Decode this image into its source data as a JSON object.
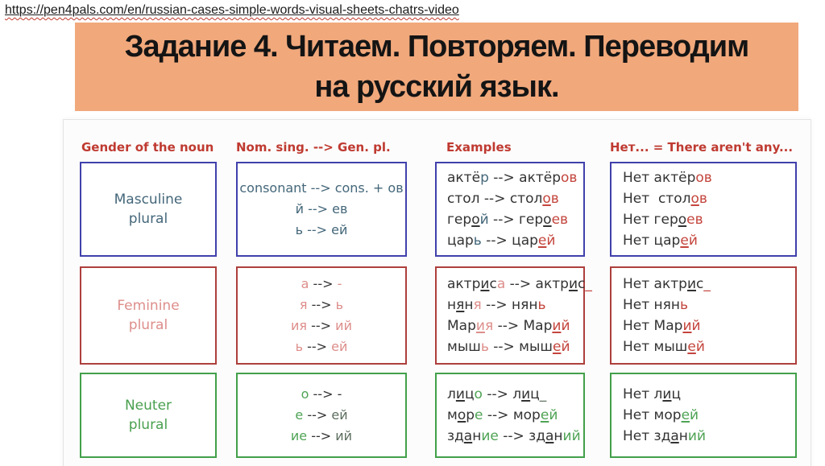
{
  "url": "https://pen4pals.com/en/russian-cases-simple-words-visual-sheets-chatrs-video",
  "banner": {
    "title_line1": "Задание 4. Читаем. Повторяем. Переводим",
    "title_line2": "на русский язык.",
    "bg_color": "#f1a87b"
  },
  "colors": {
    "black": "#333333",
    "teal": "#44677a",
    "red": "#c4453d",
    "pink": "#dd8e8b",
    "green": "#4fa355",
    "dgreen": "#5c6e5e",
    "header_red": "#bf3a31",
    "border_blue": "#4040ac",
    "border_red": "#ad3f3c",
    "border_green": "#42a04a"
  },
  "table": {
    "headers": [
      "Gender of the noun",
      "Nom. sing. --> Gen. pl.",
      "Examples",
      "Нет... = There aren't any..."
    ],
    "rows": [
      {
        "name": "masculine",
        "label_lines": [
          "Masculine",
          "plural"
        ],
        "rules": [
          [
            {
              "t": "consonant --> cons. + ов",
              "c": "teal"
            }
          ],
          [
            {
              "t": "й --> ев",
              "c": "teal"
            }
          ],
          [
            {
              "t": "ь --> ей",
              "c": "teal"
            }
          ]
        ],
        "examples": [
          [
            {
              "t": "актё",
              "c": "black"
            },
            {
              "t": "р",
              "c": "teal"
            },
            {
              "t": " --> актёр",
              "c": "black"
            },
            {
              "t": "ов",
              "c": "red"
            }
          ],
          [
            {
              "t": "стол --> стол",
              "c": "black"
            },
            {
              "t": "о",
              "c": "red",
              "u": true
            },
            {
              "t": "в",
              "c": "red"
            }
          ],
          [
            {
              "t": "гер",
              "c": "black"
            },
            {
              "t": "о",
              "c": "black",
              "u": true
            },
            {
              "t": "й",
              "c": "teal"
            },
            {
              "t": " --> гер",
              "c": "black"
            },
            {
              "t": "о",
              "c": "black",
              "u": true
            },
            {
              "t": "ев",
              "c": "red"
            }
          ],
          [
            {
              "t": "цар",
              "c": "black"
            },
            {
              "t": "ь",
              "c": "teal"
            },
            {
              "t": " --> цар",
              "c": "black"
            },
            {
              "t": "е",
              "c": "red",
              "u": true
            },
            {
              "t": "й",
              "c": "red"
            }
          ]
        ],
        "net": [
          [
            {
              "t": "Нет актёр",
              "c": "black"
            },
            {
              "t": "ов",
              "c": "red"
            }
          ],
          [
            {
              "t": "Нет  стол",
              "c": "black"
            },
            {
              "t": "о",
              "c": "red",
              "u": true
            },
            {
              "t": "в",
              "c": "red"
            }
          ],
          [
            {
              "t": "Нет гер",
              "c": "black"
            },
            {
              "t": "о",
              "c": "black",
              "u": true
            },
            {
              "t": "ев",
              "c": "red"
            }
          ],
          [
            {
              "t": "Нет цар",
              "c": "black"
            },
            {
              "t": "е",
              "c": "red",
              "u": true
            },
            {
              "t": "й",
              "c": "red"
            }
          ]
        ]
      },
      {
        "name": "feminine",
        "label_lines": [
          "Feminine",
          "plural"
        ],
        "rules": [
          [
            {
              "t": "а",
              "c": "pink"
            },
            {
              "t": " --> ",
              "c": "black"
            },
            {
              "t": "-",
              "c": "pink"
            }
          ],
          [
            {
              "t": "я",
              "c": "pink"
            },
            {
              "t": " --> ",
              "c": "black"
            },
            {
              "t": "ь",
              "c": "pink"
            }
          ],
          [
            {
              "t": "ия",
              "c": "pink"
            },
            {
              "t": " --> ",
              "c": "black"
            },
            {
              "t": "ий",
              "c": "pink"
            }
          ],
          [
            {
              "t": "ь",
              "c": "pink"
            },
            {
              "t": " --> ",
              "c": "black"
            },
            {
              "t": "ей",
              "c": "pink"
            }
          ]
        ],
        "examples": [
          [
            {
              "t": "актр",
              "c": "black"
            },
            {
              "t": "и",
              "c": "black",
              "u": true
            },
            {
              "t": "с",
              "c": "black"
            },
            {
              "t": "а",
              "c": "pink"
            },
            {
              "t": " --> актр",
              "c": "black"
            },
            {
              "t": "и",
              "c": "black",
              "u": true
            },
            {
              "t": "с",
              "c": "black"
            },
            {
              "t": "_",
              "c": "red"
            }
          ],
          [
            {
              "t": "н",
              "c": "black"
            },
            {
              "t": "я",
              "c": "black",
              "u": true
            },
            {
              "t": "н",
              "c": "black"
            },
            {
              "t": "я",
              "c": "pink"
            },
            {
              "t": " --> нян",
              "c": "black"
            },
            {
              "t": "ь",
              "c": "red"
            }
          ],
          [
            {
              "t": "Мар",
              "c": "black"
            },
            {
              "t": "и",
              "c": "pink",
              "u": true
            },
            {
              "t": "я",
              "c": "pink"
            },
            {
              "t": " --> Мар",
              "c": "black"
            },
            {
              "t": "и",
              "c": "red",
              "u": true
            },
            {
              "t": "й",
              "c": "red"
            }
          ],
          [
            {
              "t": "мыш",
              "c": "black"
            },
            {
              "t": "ь",
              "c": "pink"
            },
            {
              "t": " --> мыш",
              "c": "black"
            },
            {
              "t": "е",
              "c": "red",
              "u": true
            },
            {
              "t": "й",
              "c": "red"
            }
          ]
        ],
        "net": [
          [
            {
              "t": "Нет актр",
              "c": "black"
            },
            {
              "t": "и",
              "c": "black",
              "u": true
            },
            {
              "t": "с",
              "c": "black"
            },
            {
              "t": "_",
              "c": "red"
            }
          ],
          [
            {
              "t": "Нет нян",
              "c": "black"
            },
            {
              "t": "ь",
              "c": "red"
            }
          ],
          [
            {
              "t": "Нет Мар",
              "c": "black"
            },
            {
              "t": "и",
              "c": "red",
              "u": true
            },
            {
              "t": "й",
              "c": "red"
            }
          ],
          [
            {
              "t": "Нет мыш",
              "c": "black"
            },
            {
              "t": "е",
              "c": "red",
              "u": true
            },
            {
              "t": "й",
              "c": "red"
            }
          ]
        ]
      },
      {
        "name": "neuter",
        "label_lines": [
          "Neuter",
          "plural"
        ],
        "rules": [
          [
            {
              "t": "о",
              "c": "green"
            },
            {
              "t": " --> ",
              "c": "black"
            },
            {
              "t": "-",
              "c": "black"
            }
          ],
          [
            {
              "t": "е",
              "c": "green"
            },
            {
              "t": " --> ",
              "c": "black"
            },
            {
              "t": "ей",
              "c": "dgreen"
            }
          ],
          [
            {
              "t": "ие",
              "c": "green"
            },
            {
              "t": " --> ",
              "c": "black"
            },
            {
              "t": "ий",
              "c": "dgreen"
            }
          ]
        ],
        "examples": [
          [
            {
              "t": "л",
              "c": "black"
            },
            {
              "t": "и",
              "c": "black",
              "u": true
            },
            {
              "t": "ц",
              "c": "black"
            },
            {
              "t": "о",
              "c": "green"
            },
            {
              "t": " --> л",
              "c": "black"
            },
            {
              "t": "и",
              "c": "black",
              "u": true
            },
            {
              "t": "ц",
              "c": "black"
            },
            {
              "t": "_",
              "c": "dgreen"
            }
          ],
          [
            {
              "t": "м",
              "c": "black"
            },
            {
              "t": "о",
              "c": "black",
              "u": true
            },
            {
              "t": "р",
              "c": "black"
            },
            {
              "t": "е",
              "c": "green"
            },
            {
              "t": " --> мор",
              "c": "black"
            },
            {
              "t": "е",
              "c": "green",
              "u": true
            },
            {
              "t": "й",
              "c": "green"
            }
          ],
          [
            {
              "t": "зд",
              "c": "black"
            },
            {
              "t": "а",
              "c": "black",
              "u": true
            },
            {
              "t": "н",
              "c": "black"
            },
            {
              "t": "ие",
              "c": "green"
            },
            {
              "t": " --> зд",
              "c": "black"
            },
            {
              "t": "а",
              "c": "black",
              "u": true
            },
            {
              "t": "н",
              "c": "black"
            },
            {
              "t": "ий",
              "c": "green"
            }
          ]
        ],
        "net": [
          [
            {
              "t": "Нет л",
              "c": "black"
            },
            {
              "t": "и",
              "c": "black",
              "u": true
            },
            {
              "t": "ц",
              "c": "black"
            }
          ],
          [
            {
              "t": "Нет мор",
              "c": "black"
            },
            {
              "t": "е",
              "c": "green",
              "u": true
            },
            {
              "t": "й",
              "c": "green"
            }
          ],
          [
            {
              "t": "Нет зд",
              "c": "black"
            },
            {
              "t": "а",
              "c": "black",
              "u": true
            },
            {
              "t": "н",
              "c": "black"
            },
            {
              "t": "ий",
              "c": "green"
            }
          ]
        ]
      }
    ]
  }
}
